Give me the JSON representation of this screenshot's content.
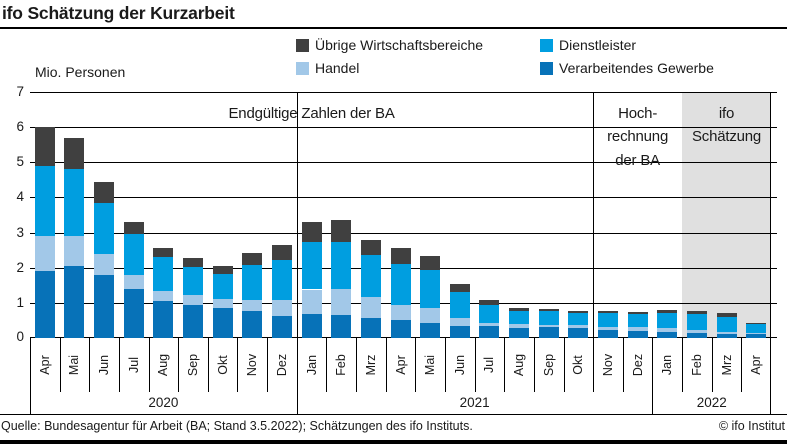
{
  "header": {
    "title": "ifo Schätzung der Kurzarbeit"
  },
  "legend": {
    "items": [
      {
        "label": "Übrige Wirtschaftsbereiche",
        "color": "#404040"
      },
      {
        "label": "Dienstleister",
        "color": "#009ee0"
      },
      {
        "label": "Handel",
        "color": "#a2c8e8"
      },
      {
        "label": "Verarbeitendes Gewerbe",
        "color": "#0772b8"
      }
    ]
  },
  "unit_label": "Mio. Personen",
  "regions": [
    {
      "label": "Endgültige Zahlen der BA",
      "from": 0,
      "to": 19,
      "shaded": false
    },
    {
      "label": "Hoch-\nrechnung\nder BA",
      "from": 19,
      "to": 22,
      "shaded": false
    },
    {
      "label": "ifo\nSchätzung",
      "from": 22,
      "to": 25,
      "shaded": true
    }
  ],
  "chart_data": {
    "type": "bar",
    "stacked": true,
    "title": "ifo Schätzung der Kurzarbeit",
    "ylabel": "Mio. Personen",
    "ylim": [
      0,
      7
    ],
    "yticks": [
      0,
      1,
      2,
      3,
      4,
      5,
      6,
      7
    ],
    "grid": true,
    "legend_position": "top",
    "categories": [
      "Apr",
      "Mai",
      "Jun",
      "Jul",
      "Aug",
      "Sep",
      "Okt",
      "Nov",
      "Dez",
      "Jan",
      "Feb",
      "Mrz",
      "Apr",
      "Mai",
      "Jun",
      "Jul",
      "Aug",
      "Sep",
      "Okt",
      "Nov",
      "Dez",
      "Jan",
      "Feb",
      "Mrz",
      "Apr"
    ],
    "year_regions": [
      {
        "label": "2020",
        "from": 0,
        "to": 9
      },
      {
        "label": "2021",
        "from": 9,
        "to": 21
      },
      {
        "label": "2022",
        "from": 21,
        "to": 25
      }
    ],
    "dividers": [
      9,
      19
    ],
    "series": [
      {
        "name": "Verarbeitendes Gewerbe",
        "color": "#0772b8",
        "values": [
          1.9,
          2.05,
          1.8,
          1.4,
          1.05,
          0.95,
          0.85,
          0.78,
          0.62,
          0.68,
          0.65,
          0.58,
          0.5,
          0.42,
          0.35,
          0.34,
          0.28,
          0.32,
          0.29,
          0.23,
          0.21,
          0.18,
          0.13,
          0.1,
          0.1
        ]
      },
      {
        "name": "Handel",
        "color": "#a2c8e8",
        "values": [
          1.0,
          0.85,
          0.6,
          0.4,
          0.3,
          0.28,
          0.27,
          0.3,
          0.46,
          0.7,
          0.75,
          0.6,
          0.45,
          0.44,
          0.21,
          0.1,
          0.12,
          0.06,
          0.08,
          0.09,
          0.09,
          0.1,
          0.1,
          0.08,
          0.05
        ]
      },
      {
        "name": "Dienstleister",
        "color": "#009ee0",
        "values": [
          2.0,
          1.9,
          1.45,
          1.15,
          0.95,
          0.8,
          0.7,
          1.0,
          1.15,
          1.35,
          1.33,
          1.17,
          1.15,
          1.07,
          0.74,
          0.51,
          0.37,
          0.38,
          0.33,
          0.38,
          0.39,
          0.44,
          0.45,
          0.43,
          0.27
        ]
      },
      {
        "name": "Übrige Wirtschaftsbereiche",
        "color": "#404040",
        "values": [
          1.1,
          0.9,
          0.6,
          0.35,
          0.25,
          0.25,
          0.23,
          0.34,
          0.42,
          0.57,
          0.62,
          0.45,
          0.45,
          0.39,
          0.24,
          0.14,
          0.07,
          0.06,
          0.06,
          0.08,
          0.04,
          0.09,
          0.09,
          0.09,
          0.02
        ]
      }
    ],
    "shade_color": "#e0e0e0"
  },
  "footer": {
    "source": "Quelle: Bundesagentur für Arbeit (BA; Stand 3.5.2022); Schätzungen des ifo Instituts.",
    "copyright": "© ifo Institut"
  }
}
